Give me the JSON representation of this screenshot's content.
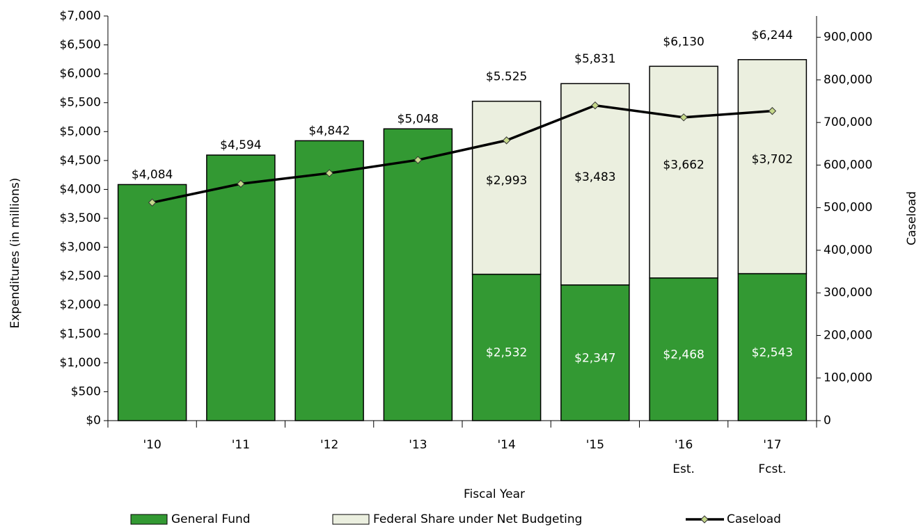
{
  "chart_data": {
    "type": "bar",
    "stacked": true,
    "x_label": "Fiscal Year",
    "y_label": "Expenditures (in millions)",
    "y2_label": "Caseload",
    "categories": [
      "'10",
      "'11",
      "'12",
      "'13",
      "'14",
      "'15",
      "'16",
      "'17"
    ],
    "category_notes": [
      null,
      null,
      null,
      null,
      null,
      null,
      "Est.",
      "Fcst."
    ],
    "ylim": [
      0,
      7000
    ],
    "yticks": [
      {
        "value": 0,
        "label": "$0"
      },
      {
        "value": 500,
        "label": "$500"
      },
      {
        "value": 1000,
        "label": "$1,000"
      },
      {
        "value": 1500,
        "label": "$1,500"
      },
      {
        "value": 2000,
        "label": "$2,000"
      },
      {
        "value": 2500,
        "label": "$2,500"
      },
      {
        "value": 3000,
        "label": "$3,000"
      },
      {
        "value": 3500,
        "label": "$3,500"
      },
      {
        "value": 4000,
        "label": "$4,000"
      },
      {
        "value": 4500,
        "label": "$4,500"
      },
      {
        "value": 5000,
        "label": "$5,000"
      },
      {
        "value": 5500,
        "label": "$5,500"
      },
      {
        "value": 6000,
        "label": "$6,000"
      },
      {
        "value": 6500,
        "label": "$6,500"
      },
      {
        "value": 7000,
        "label": "$7,000"
      }
    ],
    "y2lim": [
      0,
      950000
    ],
    "y2ticks": [
      0,
      {
        "value": 100000,
        "label": "100,000"
      },
      {
        "value": 200000,
        "label": "200,000"
      },
      {
        "value": 300000,
        "label": "300,000"
      },
      {
        "value": 400000,
        "label": "400,000"
      },
      {
        "value": 500000,
        "label": "500,000"
      },
      {
        "value": 600000,
        "label": "600,000"
      },
      {
        "value": 700000,
        "label": "700,000"
      },
      {
        "value": 800000,
        "label": "800,000"
      },
      {
        "value": 900000,
        "label": "900,000"
      }
    ],
    "series": [
      {
        "name": "General Fund",
        "color": "#339933",
        "values": [
          4084,
          4594,
          4842,
          5048,
          2532,
          2347,
          2468,
          2543
        ],
        "value_labels": [
          "$4,084",
          "$4,594",
          "$4,842",
          "$5,048",
          "$2,532",
          "$2,347",
          "$2,468",
          "$2,543"
        ]
      },
      {
        "name": "Federal Share under Net Budgeting",
        "color": "#ebefdf",
        "values": [
          null,
          null,
          null,
          null,
          2993,
          3483,
          3662,
          3702
        ],
        "value_labels": [
          null,
          null,
          null,
          null,
          "$2,993",
          "$3,483",
          "$3,662",
          "$3,702"
        ]
      },
      {
        "name": "Caseload",
        "type": "line",
        "axis": "y2",
        "color": "#000000",
        "marker_color": "#c5d88a",
        "values": [
          512000,
          556000,
          581000,
          612000,
          658000,
          740000,
          712000,
          727000
        ]
      }
    ],
    "totals": {
      "values": [
        null,
        null,
        null,
        null,
        5525,
        5831,
        6130,
        6244
      ],
      "value_labels": [
        null,
        null,
        null,
        null,
        "$5.525",
        "$5,831",
        "$6,130",
        "$6,244"
      ]
    }
  }
}
